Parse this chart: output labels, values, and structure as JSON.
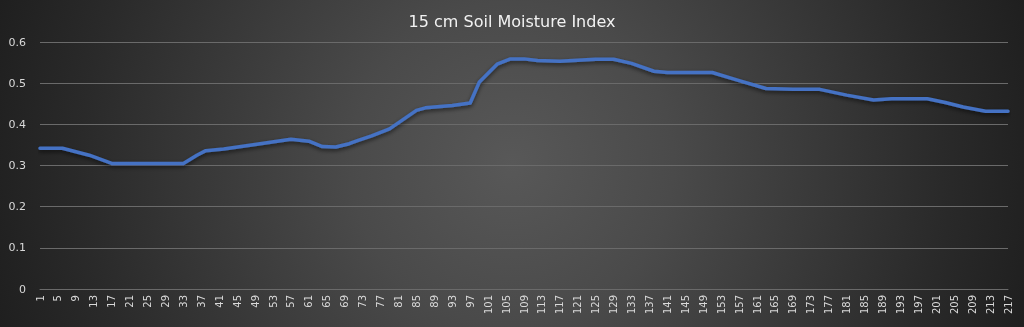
{
  "chart_data": {
    "type": "line",
    "title": "15 cm Soil Moisture Index",
    "x": [
      1,
      6,
      12,
      17,
      33,
      36,
      38,
      42,
      49,
      57,
      61,
      64,
      67,
      70,
      72,
      75,
      79,
      85,
      87,
      93,
      97,
      99,
      103,
      106,
      109,
      112,
      117,
      122,
      125,
      129,
      133,
      138,
      141,
      146,
      151,
      157,
      163,
      169,
      175,
      181,
      187,
      191,
      199,
      203,
      207,
      212,
      217
    ],
    "series": [
      {
        "color": "#4472c4",
        "values": [
          0.342,
          0.342,
          0.325,
          0.305,
          0.305,
          0.325,
          0.336,
          0.34,
          0.351,
          0.364,
          0.359,
          0.346,
          0.345,
          0.353,
          0.361,
          0.372,
          0.389,
          0.434,
          0.44,
          0.446,
          0.452,
          0.502,
          0.546,
          0.559,
          0.559,
          0.555,
          0.553,
          0.556,
          0.558,
          0.558,
          0.548,
          0.529,
          0.526,
          0.526,
          0.526,
          0.506,
          0.487,
          0.485,
          0.485,
          0.471,
          0.459,
          0.462,
          0.462,
          0.453,
          0.442,
          0.432,
          0.432
        ]
      }
    ],
    "xlim": [
      1,
      217
    ],
    "xticks": [
      1,
      5,
      9,
      13,
      17,
      21,
      25,
      29,
      33,
      37,
      41,
      45,
      49,
      53,
      57,
      61,
      65,
      69,
      73,
      77,
      81,
      85,
      89,
      93,
      97,
      101,
      105,
      109,
      113,
      117,
      121,
      125,
      129,
      133,
      137,
      141,
      145,
      149,
      153,
      157,
      161,
      165,
      169,
      173,
      177,
      181,
      185,
      189,
      193,
      197,
      201,
      205,
      209,
      213,
      217
    ],
    "ylim": [
      0,
      0.6
    ],
    "yticks": [
      0,
      0.1,
      0.2,
      0.3,
      0.4,
      0.5,
      0.6
    ],
    "grid": "y",
    "marker": "none",
    "line_style": "solid"
  }
}
